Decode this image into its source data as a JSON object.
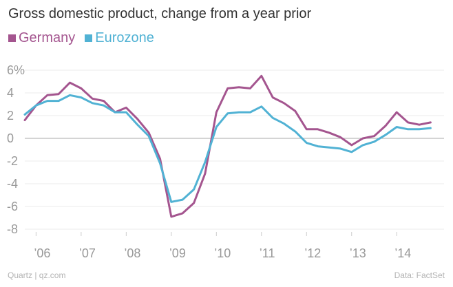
{
  "title": "Gross domestic product, change from a year prior",
  "legend": [
    {
      "name": "Germany",
      "color": "#a4558f"
    },
    {
      "name": "Eurozone",
      "color": "#51b2d4"
    }
  ],
  "footer": {
    "source_left": "Quartz | qz.com",
    "source_right": "Data: FactSet"
  },
  "chart_data": {
    "type": "line",
    "ylim": [
      -8,
      6
    ],
    "xlim": [
      2005.75,
      2015.05
    ],
    "y_ticks": [
      {
        "value": 6,
        "label": "6%"
      },
      {
        "value": 4,
        "label": "4"
      },
      {
        "value": 2,
        "label": "2"
      },
      {
        "value": 0,
        "label": "0"
      },
      {
        "value": -2,
        "label": "-2"
      },
      {
        "value": -4,
        "label": "-4"
      },
      {
        "value": -6,
        "label": "-6"
      },
      {
        "value": -8,
        "label": "-8"
      }
    ],
    "x_ticks": [
      {
        "value": 2006,
        "label": "’06"
      },
      {
        "value": 2007,
        "label": "’07"
      },
      {
        "value": 2008,
        "label": "’08"
      },
      {
        "value": 2009,
        "label": "’09"
      },
      {
        "value": 2010,
        "label": "’10"
      },
      {
        "value": 2011,
        "label": "’11"
      },
      {
        "value": 2012,
        "label": "’12"
      },
      {
        "value": 2013,
        "label": "’13"
      },
      {
        "value": 2014,
        "label": "’14"
      }
    ],
    "x": [
      "2005-Q4",
      "2006-Q1",
      "2006-Q2",
      "2006-Q3",
      "2006-Q4",
      "2007-Q1",
      "2007-Q2",
      "2007-Q3",
      "2007-Q4",
      "2008-Q1",
      "2008-Q2",
      "2008-Q3",
      "2008-Q4",
      "2009-Q1",
      "2009-Q2",
      "2009-Q3",
      "2009-Q4",
      "2010-Q1",
      "2010-Q2",
      "2010-Q3",
      "2010-Q4",
      "2011-Q1",
      "2011-Q2",
      "2011-Q3",
      "2011-Q4",
      "2012-Q1",
      "2012-Q2",
      "2012-Q3",
      "2012-Q4",
      "2013-Q1",
      "2013-Q2",
      "2013-Q3",
      "2013-Q4",
      "2014-Q1",
      "2014-Q2",
      "2014-Q3",
      "2014-Q4"
    ],
    "series": [
      {
        "name": "Germany",
        "color": "#a4558f",
        "values": [
          1.6,
          2.9,
          3.8,
          3.9,
          4.9,
          4.4,
          3.5,
          3.3,
          2.3,
          2.7,
          1.7,
          0.5,
          -1.8,
          -6.9,
          -6.6,
          -5.7,
          -3.1,
          2.3,
          4.4,
          4.5,
          4.4,
          5.5,
          3.6,
          3.1,
          2.4,
          0.8,
          0.8,
          0.5,
          0.1,
          -0.6,
          0.0,
          0.2,
          1.1,
          2.3,
          1.4,
          1.2,
          1.4
        ]
      },
      {
        "name": "Eurozone",
        "color": "#51b2d4",
        "values": [
          2.1,
          2.9,
          3.3,
          3.3,
          3.8,
          3.6,
          3.1,
          2.9,
          2.3,
          2.3,
          1.2,
          0.2,
          -2.2,
          -5.6,
          -5.4,
          -4.5,
          -2.1,
          1.0,
          2.2,
          2.3,
          2.3,
          2.8,
          1.8,
          1.3,
          0.6,
          -0.4,
          -0.7,
          -0.8,
          -0.9,
          -1.2,
          -0.6,
          -0.3,
          0.3,
          1.0,
          0.8,
          0.8,
          0.9
        ]
      }
    ]
  }
}
